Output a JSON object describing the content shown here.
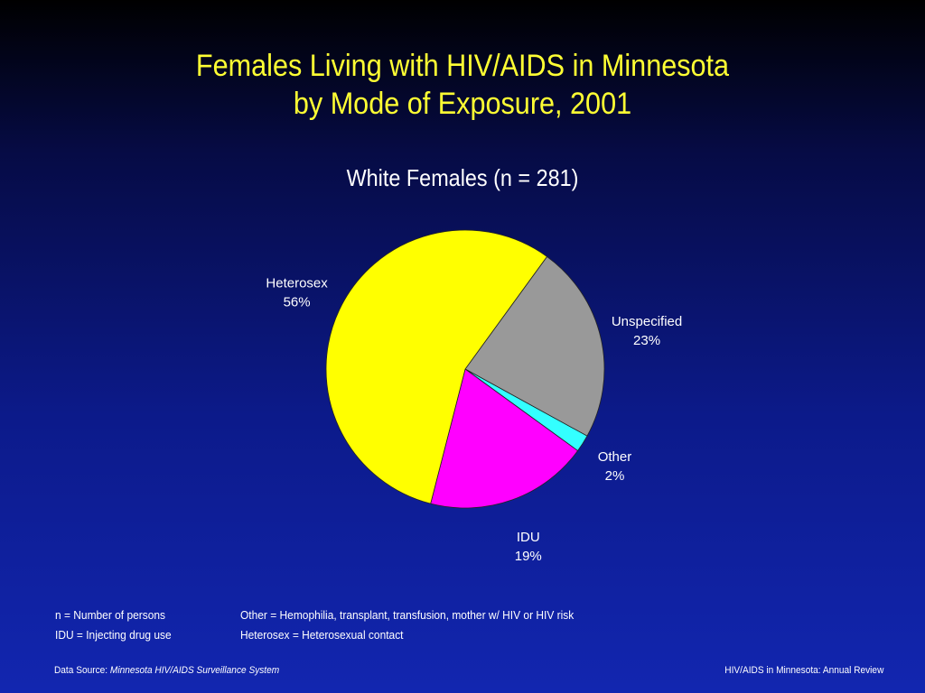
{
  "header": {
    "title_line1": "Females Living with HIV/AIDS in Minnesota",
    "title_line2": "by Mode of Exposure, 2001"
  },
  "chart_data": {
    "type": "pie",
    "title": "White Females (n = 281)",
    "slices": [
      {
        "label": "Unspecified",
        "value": 23,
        "value_label": "23%",
        "color": "#999999"
      },
      {
        "label": "Other",
        "value": 2,
        "value_label": "2%",
        "color": "#33ffff"
      },
      {
        "label": "IDU",
        "value": 19,
        "value_label": "19%",
        "color": "#ff00ff"
      },
      {
        "label": "Heterosex",
        "value": 56,
        "value_label": "56%",
        "color": "#ffff00"
      }
    ]
  },
  "notes": {
    "n_def": "n = Number of persons",
    "idu_def": "IDU = Injecting drug use",
    "other_def": "Other = Hemophilia, transplant, transfusion, mother w/ HIV or HIV risk",
    "heterosex_def": "Heterosex = Heterosexual contact"
  },
  "footer": {
    "source_prefix": "Data Source:",
    "source_name": "Minnesota HIV/AIDS Surveillance System",
    "report_name": "HIV/AIDS in Minnesota: Annual Review"
  }
}
